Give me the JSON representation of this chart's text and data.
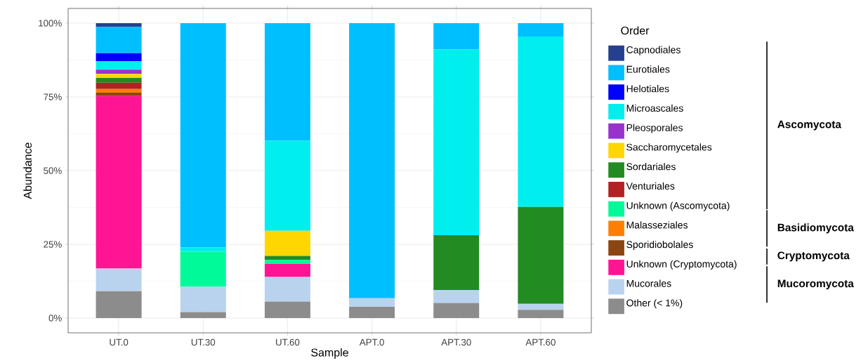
{
  "chart_data": {
    "type": "bar",
    "stacked": true,
    "xlabel": "Sample",
    "ylabel": "Abundance",
    "legend_title": "Order",
    "legend": "right",
    "grid": true,
    "categories": [
      "UT.0",
      "UT.30",
      "UT.60",
      "APT.0",
      "APT.30",
      "APT.60"
    ],
    "ylim": [
      -5,
      105
    ],
    "yticks": [
      {
        "value": 0,
        "label": "0%"
      },
      {
        "value": 25,
        "label": "25%"
      },
      {
        "value": 50,
        "label": "50%"
      },
      {
        "value": 75,
        "label": "75%"
      },
      {
        "value": 100,
        "label": "100%"
      }
    ],
    "series": [
      {
        "name": "Other (< 1%)",
        "color": "#8c8c8c",
        "values": [
          9.1,
          2.0,
          5.6,
          3.8,
          5.1,
          2.8
        ]
      },
      {
        "name": "Mucorales",
        "color": "#b9d3ee",
        "values": [
          7.7,
          8.7,
          8.3,
          2.9,
          4.4,
          2.0
        ]
      },
      {
        "name": "Unknown (Cryptomycota)",
        "color": "#ff1493",
        "values": [
          58.5,
          null,
          4.5,
          null,
          null,
          null
        ]
      },
      {
        "name": "Sporidiobolales",
        "color": "#8b4513",
        "values": [
          1.1,
          null,
          null,
          null,
          null,
          null
        ]
      },
      {
        "name": "Malasseziales",
        "color": "#ff7f00",
        "values": [
          1.3,
          null,
          null,
          null,
          null,
          null
        ]
      },
      {
        "name": "Unknown (Ascomycota)",
        "color": "#00fa9a",
        "values": [
          null,
          11.8,
          1.3,
          null,
          null,
          null
        ]
      },
      {
        "name": "Venturiales",
        "color": "#b22222",
        "values": [
          2.1,
          null,
          null,
          null,
          null,
          null
        ]
      },
      {
        "name": "Sordariales",
        "color": "#228b22",
        "values": [
          1.6,
          null,
          1.4,
          null,
          18.6,
          32.9
        ]
      },
      {
        "name": "Saccharomycetales",
        "color": "#ffd700",
        "values": [
          1.4,
          null,
          8.5,
          null,
          null,
          null
        ]
      },
      {
        "name": "Pleosporales",
        "color": "#9932cc",
        "values": [
          1.4,
          null,
          null,
          null,
          null,
          null
        ]
      },
      {
        "name": "Microascales",
        "color": "#00eeee",
        "values": [
          2.9,
          1.4,
          30.5,
          null,
          63.0,
          57.8
        ]
      },
      {
        "name": "Helotiales",
        "color": "#0000ff",
        "values": [
          2.7,
          null,
          null,
          null,
          null,
          null
        ]
      },
      {
        "name": "Eurotiales",
        "color": "#00bfff",
        "values": [
          8.9,
          76.1,
          39.9,
          93.3,
          8.9,
          4.5
        ]
      },
      {
        "name": "Capnodiales",
        "color": "#25408f",
        "values": [
          1.3,
          null,
          null,
          null,
          null,
          null
        ]
      }
    ],
    "annotations": [
      "Ascomycota",
      "Basidiomycota",
      "Cryptomycota",
      "Mucoromycota"
    ]
  }
}
